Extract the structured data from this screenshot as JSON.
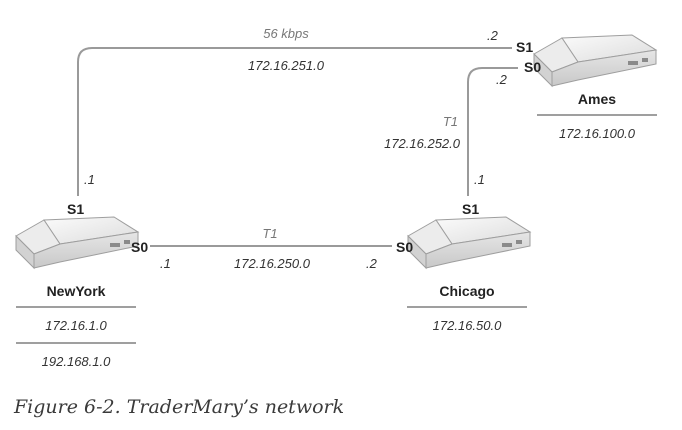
{
  "caption": "Figure 6-2. TraderMary’s network",
  "links": {
    "ny_ames": {
      "speed": "56 kbps",
      "network": "172.16.251.0",
      "ny_if": "S1",
      "ny_addr": ".1",
      "ames_if": "S1",
      "ames_addr": ".2"
    },
    "ames_chicago": {
      "speed": "T1",
      "network": "172.16.252.0",
      "ames_if": "S0",
      "ames_addr": ".2",
      "chicago_if": "S1",
      "chicago_addr": ".1"
    },
    "ny_chicago": {
      "speed": "T1",
      "network": "172.16.250.0",
      "ny_if": "S0",
      "ny_addr": ".1",
      "chicago_if": "S0",
      "chicago_addr": ".2"
    }
  },
  "routers": {
    "newyork": {
      "name": "NewYork",
      "lans": [
        "172.16.1.0",
        "192.168.1.0"
      ]
    },
    "chicago": {
      "name": "Chicago",
      "lans": [
        "172.16.50.0"
      ]
    },
    "ames": {
      "name": "Ames",
      "lans": [
        "172.16.100.0"
      ]
    }
  }
}
